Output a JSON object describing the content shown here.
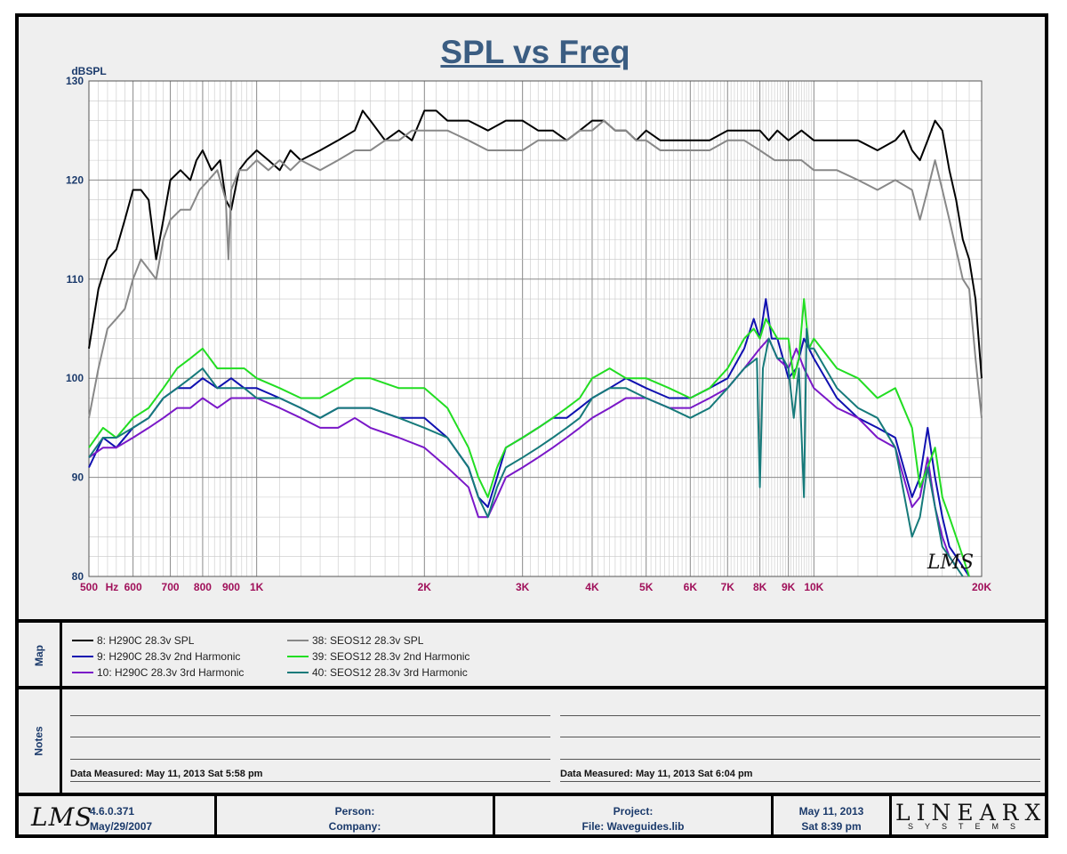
{
  "chart_data": {
    "type": "line",
    "title": "SPL vs Freq",
    "ylabel": "dBSPL",
    "xlabel": "",
    "x_scale": "log",
    "xlim": [
      500,
      20000
    ],
    "ylim": [
      80,
      130
    ],
    "grid": true,
    "y_ticks": [
      80,
      90,
      100,
      110,
      120,
      130
    ],
    "x_tick_labels": [
      {
        "f": 500,
        "label": "500"
      },
      {
        "f": 550,
        "label": "Hz"
      },
      {
        "f": 600,
        "label": "600"
      },
      {
        "f": 700,
        "label": "700"
      },
      {
        "f": 800,
        "label": "800"
      },
      {
        "f": 900,
        "label": "900"
      },
      {
        "f": 1000,
        "label": "1K"
      },
      {
        "f": 2000,
        "label": "2K"
      },
      {
        "f": 3000,
        "label": "3K"
      },
      {
        "f": 4000,
        "label": "4K"
      },
      {
        "f": 5000,
        "label": "5K"
      },
      {
        "f": 6000,
        "label": "6K"
      },
      {
        "f": 7000,
        "label": "7K"
      },
      {
        "f": 8000,
        "label": "8K"
      },
      {
        "f": 9000,
        "label": "9K"
      },
      {
        "f": 10000,
        "label": "10K"
      },
      {
        "f": 20000,
        "label": "20K"
      }
    ],
    "series": [
      {
        "name": "8: H290C 28.3v SPL",
        "color": "#000000",
        "x": [
          500,
          520,
          540,
          560,
          580,
          600,
          620,
          640,
          660,
          680,
          700,
          730,
          760,
          780,
          800,
          830,
          860,
          880,
          900,
          930,
          960,
          1000,
          1050,
          1100,
          1150,
          1200,
          1300,
          1400,
          1500,
          1550,
          1600,
          1700,
          1800,
          1900,
          2000,
          2100,
          2200,
          2400,
          2600,
          2800,
          3000,
          3200,
          3400,
          3600,
          3800,
          4000,
          4200,
          4400,
          4600,
          4800,
          5000,
          5300,
          5600,
          6000,
          6500,
          7000,
          7500,
          8000,
          8300,
          8600,
          9000,
          9500,
          10000,
          11000,
          12000,
          13000,
          14000,
          14500,
          15000,
          15500,
          16000,
          16500,
          17000,
          17500,
          18000,
          18500,
          19000,
          19500,
          20000
        ],
        "y": [
          103,
          109,
          112,
          113,
          116,
          119,
          119,
          118,
          112,
          116,
          120,
          121,
          120,
          122,
          123,
          121,
          122,
          118,
          117,
          121,
          122,
          123,
          122,
          121,
          123,
          122,
          123,
          124,
          125,
          127,
          126,
          124,
          125,
          124,
          127,
          127,
          126,
          126,
          125,
          126,
          126,
          125,
          125,
          124,
          125,
          126,
          126,
          125,
          125,
          124,
          125,
          124,
          124,
          124,
          124,
          125,
          125,
          125,
          124,
          125,
          124,
          125,
          124,
          124,
          124,
          123,
          124,
          125,
          123,
          122,
          124,
          126,
          125,
          121,
          118,
          114,
          112,
          108,
          100
        ]
      },
      {
        "name": "9: H290C 28.3v 2nd Harmonic",
        "color": "#1010b0",
        "x": [
          500,
          530,
          560,
          600,
          640,
          680,
          720,
          760,
          800,
          850,
          900,
          950,
          1000,
          1100,
          1200,
          1300,
          1400,
          1500,
          1600,
          1800,
          2000,
          2200,
          2400,
          2500,
          2600,
          2700,
          2800,
          3000,
          3200,
          3400,
          3600,
          3800,
          4000,
          4300,
          4600,
          5000,
          5500,
          6000,
          6500,
          7000,
          7500,
          7800,
          8000,
          8200,
          8400,
          8600,
          8800,
          9000,
          9300,
          9600,
          10000,
          11000,
          12000,
          13000,
          14000,
          15000,
          15500,
          16000,
          16500,
          17000,
          17500,
          18000,
          18500,
          19000
        ],
        "y": [
          91,
          94,
          93,
          95,
          96,
          98,
          99,
          99,
          100,
          99,
          100,
          99,
          99,
          98,
          97,
          96,
          97,
          97,
          97,
          96,
          96,
          94,
          91,
          88,
          87,
          90,
          93,
          94,
          95,
          96,
          96,
          97,
          98,
          99,
          100,
          99,
          98,
          98,
          99,
          100,
          103,
          106,
          104,
          108,
          104,
          104,
          102,
          100,
          101,
          104,
          102,
          98,
          96,
          95,
          94,
          88,
          90,
          95,
          90,
          86,
          83,
          82,
          81,
          80
        ]
      },
      {
        "name": "10: H290C 28.3v 3rd Harmonic",
        "color": "#7a18c8",
        "x": [
          500,
          530,
          560,
          600,
          640,
          680,
          720,
          760,
          800,
          850,
          900,
          950,
          1000,
          1100,
          1200,
          1300,
          1400,
          1500,
          1600,
          1800,
          2000,
          2200,
          2400,
          2500,
          2600,
          2700,
          2800,
          3000,
          3200,
          3400,
          3600,
          3800,
          4000,
          4300,
          4600,
          5000,
          5500,
          6000,
          6500,
          7000,
          7500,
          8000,
          8300,
          8600,
          9000,
          9300,
          9600,
          10000,
          11000,
          12000,
          13000,
          14000,
          15000,
          15500,
          16000,
          16500,
          17000,
          17500,
          18000
        ],
        "y": [
          92,
          93,
          93,
          94,
          95,
          96,
          97,
          97,
          98,
          97,
          98,
          98,
          98,
          97,
          96,
          95,
          95,
          96,
          95,
          94,
          93,
          91,
          89,
          86,
          86,
          88,
          90,
          91,
          92,
          93,
          94,
          95,
          96,
          97,
          98,
          98,
          97,
          97,
          98,
          99,
          101,
          103,
          104,
          102,
          101,
          103,
          101,
          99,
          97,
          96,
          94,
          93,
          87,
          88,
          92,
          87,
          84,
          82,
          81
        ]
      },
      {
        "name": "38: SEOS12 28.3v SPL",
        "color": "#888888",
        "x": [
          500,
          520,
          540,
          560,
          580,
          600,
          620,
          640,
          660,
          680,
          700,
          730,
          760,
          790,
          820,
          850,
          880,
          890,
          900,
          930,
          960,
          1000,
          1050,
          1100,
          1150,
          1200,
          1300,
          1400,
          1500,
          1600,
          1700,
          1800,
          1900,
          2000,
          2100,
          2200,
          2400,
          2600,
          2800,
          3000,
          3200,
          3400,
          3600,
          3800,
          4000,
          4200,
          4400,
          4600,
          4800,
          5000,
          5300,
          5600,
          6000,
          6500,
          7000,
          7500,
          8000,
          8500,
          9000,
          9500,
          10000,
          11000,
          12000,
          13000,
          14000,
          15000,
          15500,
          16000,
          16500,
          17000,
          17500,
          18000,
          18500,
          19000,
          19500,
          20000
        ],
        "y": [
          96,
          101,
          105,
          106,
          107,
          110,
          112,
          111,
          110,
          114,
          116,
          117,
          117,
          119,
          120,
          121,
          118,
          112,
          119,
          121,
          121,
          122,
          121,
          122,
          121,
          122,
          121,
          122,
          123,
          123,
          124,
          124,
          125,
          125,
          125,
          125,
          124,
          123,
          123,
          123,
          124,
          124,
          124,
          125,
          125,
          126,
          125,
          125,
          124,
          124,
          123,
          123,
          123,
          123,
          124,
          124,
          123,
          122,
          122,
          122,
          121,
          121,
          120,
          119,
          120,
          119,
          116,
          119,
          122,
          119,
          116,
          113,
          110,
          109,
          102,
          96
        ]
      },
      {
        "name": "39: SEOS12 28.3v 2nd Harmonic",
        "color": "#22dd22",
        "x": [
          500,
          530,
          560,
          600,
          640,
          680,
          720,
          760,
          800,
          850,
          900,
          950,
          1000,
          1100,
          1200,
          1300,
          1400,
          1500,
          1600,
          1800,
          2000,
          2200,
          2400,
          2500,
          2600,
          2700,
          2800,
          3000,
          3200,
          3400,
          3600,
          3800,
          4000,
          4300,
          4600,
          5000,
          5500,
          6000,
          6500,
          7000,
          7500,
          7800,
          8000,
          8200,
          8400,
          8600,
          8800,
          9000,
          9200,
          9400,
          9600,
          9800,
          10000,
          11000,
          12000,
          13000,
          14000,
          15000,
          15500,
          16000,
          16500,
          17000,
          17500,
          18000,
          18500,
          19000
        ],
        "y": [
          93,
          95,
          94,
          96,
          97,
          99,
          101,
          102,
          103,
          101,
          101,
          101,
          100,
          99,
          98,
          98,
          99,
          100,
          100,
          99,
          99,
          97,
          93,
          90,
          88,
          91,
          93,
          94,
          95,
          96,
          97,
          98,
          100,
          101,
          100,
          100,
          99,
          98,
          99,
          101,
          104,
          105,
          104,
          106,
          105,
          104,
          104,
          104,
          100,
          102,
          108,
          103,
          104,
          101,
          100,
          98,
          99,
          95,
          89,
          91,
          93,
          88,
          86,
          84,
          82,
          80
        ]
      },
      {
        "name": "40: SEOS12 28.3v 3rd Harmonic",
        "color": "#167a7a",
        "x": [
          500,
          530,
          560,
          600,
          640,
          680,
          720,
          760,
          800,
          850,
          900,
          950,
          1000,
          1100,
          1200,
          1300,
          1400,
          1500,
          1600,
          1800,
          2000,
          2200,
          2400,
          2500,
          2600,
          2700,
          2800,
          3000,
          3200,
          3400,
          3600,
          3800,
          4000,
          4300,
          4600,
          5000,
          5500,
          6000,
          6500,
          7000,
          7500,
          7900,
          8000,
          8100,
          8300,
          8600,
          8800,
          9000,
          9200,
          9400,
          9600,
          9700,
          9800,
          10000,
          11000,
          12000,
          13000,
          14000,
          15000,
          15500,
          16000,
          16500,
          17000,
          17500,
          18000,
          18500
        ],
        "y": [
          92,
          94,
          94,
          95,
          96,
          98,
          99,
          100,
          101,
          99,
          99,
          99,
          98,
          98,
          97,
          96,
          97,
          97,
          97,
          96,
          95,
          94,
          91,
          88,
          86,
          89,
          91,
          92,
          93,
          94,
          95,
          96,
          98,
          99,
          99,
          98,
          97,
          96,
          97,
          99,
          101,
          102,
          89,
          101,
          104,
          102,
          102,
          101,
          96,
          101,
          88,
          105,
          103,
          103,
          99,
          97,
          96,
          93,
          84,
          86,
          91,
          87,
          83,
          82,
          81,
          80
        ]
      }
    ]
  },
  "legend": {
    "label": "Map",
    "col1": [
      "8: H290C 28.3v SPL",
      "9: H290C 28.3v 2nd Harmonic",
      "10: H290C 28.3v 3rd Harmonic"
    ],
    "col2": [
      "38: SEOS12 28.3v SPL",
      "39: SEOS12 28.3v 2nd Harmonic",
      "40: SEOS12 28.3v 3rd Harmonic"
    ]
  },
  "notes": {
    "label": "Notes",
    "measured_left": "Data Measured: May 11, 2013  Sat  5:58 pm",
    "measured_right": "Data Measured: May 11, 2013  Sat  6:04 pm"
  },
  "footer": {
    "logo": "LMS",
    "version": "4.6.0.371",
    "version_date": "May/29/2007",
    "person_label": "Person:",
    "company_label": "Company:",
    "project_label": "Project:",
    "file_label": "File: Waveguides.lib",
    "date": "May 11, 2013",
    "time": "Sat  8:39 pm",
    "brand": "LINEARX",
    "brand_sub": "SYSTEMS"
  },
  "watermark": "LMS"
}
